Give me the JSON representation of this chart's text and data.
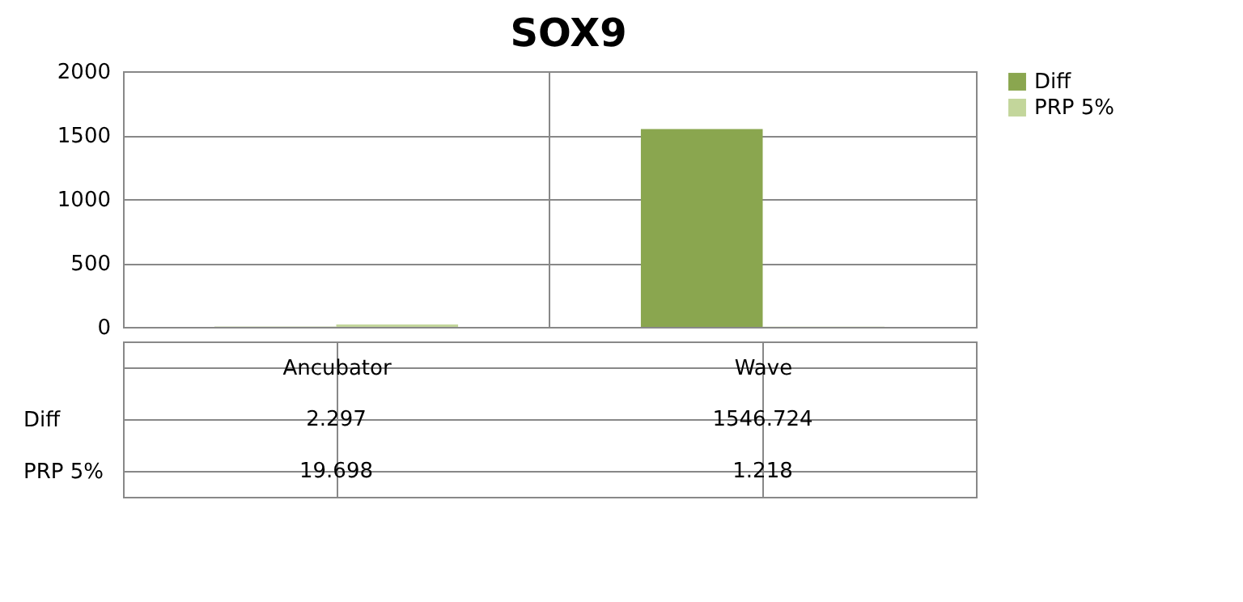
{
  "chart_data": {
    "type": "bar",
    "title": "SOX9",
    "categories": [
      "Ancubator",
      "Wave"
    ],
    "series": [
      {
        "name": "Diff",
        "color": "#8aa64f",
        "values": [
          2.297,
          1546.724
        ]
      },
      {
        "name": "PRP 5%",
        "color": "#c3d69b",
        "values": [
          19.698,
          1.218
        ]
      }
    ],
    "ylim": [
      0,
      2000
    ],
    "yticks": [
      0,
      500,
      1000,
      1500,
      2000
    ],
    "grid": "y",
    "legend": "right",
    "data_labels": true
  }
}
